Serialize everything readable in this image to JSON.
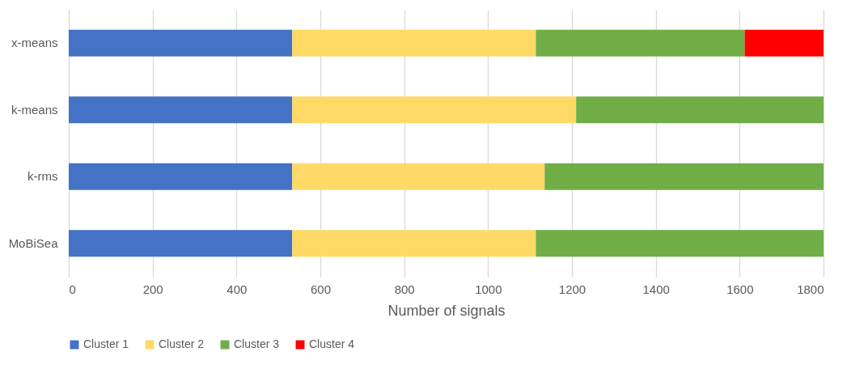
{
  "chart_data": {
    "type": "bar",
    "orientation": "horizontal",
    "stacked": true,
    "xlabel": "Number of signals",
    "categories": [
      "x-means",
      "k-means",
      "k-rms",
      "MoBiSea"
    ],
    "series": [
      {
        "name": "Cluster 1",
        "color": "#4472c4",
        "values": [
          533,
          533,
          533,
          533
        ]
      },
      {
        "name": "Cluster 2",
        "color": "#ffd966",
        "values": [
          581,
          677,
          602,
          581
        ]
      },
      {
        "name": "Cluster 3",
        "color": "#70ad47",
        "values": [
          498,
          590,
          665,
          686
        ]
      },
      {
        "name": "Cluster 4",
        "color": "#ff0000",
        "values": [
          188,
          null,
          null,
          null
        ]
      }
    ],
    "xlim": [
      0,
      1800
    ],
    "xticks": [
      0,
      200,
      400,
      600,
      800,
      1000,
      1200,
      1400,
      1600,
      1800
    ],
    "grid": "x",
    "legend": "bottom"
  }
}
